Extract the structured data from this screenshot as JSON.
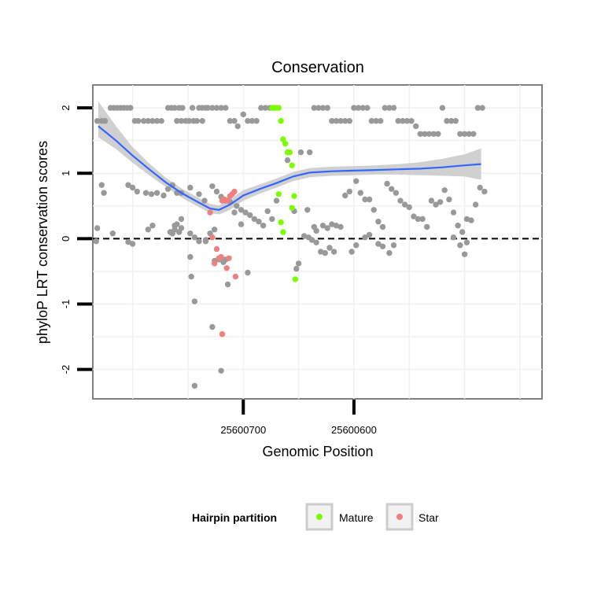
{
  "chart_data": {
    "type": "scatter",
    "title": "Conservation",
    "xlabel": "Genomic Position",
    "ylabel": "phyloP LRT conservation scores",
    "x_reversed": true,
    "xlim": [
      25600430,
      25600836
    ],
    "ylim": [
      -2.45,
      2.35
    ],
    "x_ticks": [
      25600700,
      25600600
    ],
    "x_tick_labels": [
      "25600700",
      "25600600"
    ],
    "y_ticks": [
      -2,
      -1,
      0,
      1,
      2
    ],
    "y_tick_labels": [
      "-2",
      "-1",
      "0",
      "1",
      "2"
    ],
    "reference_line": {
      "y": 0,
      "style": "dashed"
    },
    "grid": true,
    "legend": {
      "title": "Hairpin partition",
      "position": "bottom",
      "entries": [
        {
          "label": "Mature",
          "color": "#7cfc00"
        },
        {
          "label": "Star",
          "color": "#f08080"
        }
      ]
    },
    "colors": {
      "other": "#999999",
      "Mature": "#7cfc00",
      "Star": "#f08080",
      "smooth_line": "#3366ff",
      "smooth_band": "#c8c8c8"
    },
    "series": [
      {
        "name": "Mature",
        "points": [
          [
            25600674,
            2.0
          ],
          [
            25600672,
            2.0
          ],
          [
            25600670,
            2.0
          ],
          [
            25600668,
            2.0
          ],
          [
            25600666,
            1.8
          ],
          [
            25600664,
            1.52
          ],
          [
            25600662,
            1.45
          ],
          [
            25600660,
            1.32
          ],
          [
            25600658,
            1.32
          ],
          [
            25600656,
            1.12
          ],
          [
            25600668,
            0.68
          ],
          [
            25600666,
            0.25
          ],
          [
            25600664,
            0.1
          ],
          [
            25600656,
            0.47
          ],
          [
            25600654,
            0.65
          ],
          [
            25600653,
            -0.62
          ]
        ]
      },
      {
        "name": "Star",
        "points": [
          [
            25600730,
            0.4
          ],
          [
            25600728,
            0.02
          ],
          [
            25600726,
            -0.38
          ],
          [
            25600724,
            -0.16
          ],
          [
            25600722,
            -0.3
          ],
          [
            25600719,
            0.58
          ],
          [
            25600717,
            0.6
          ],
          [
            25600714,
            0.58
          ],
          [
            25600712,
            0.65
          ],
          [
            25600710,
            0.68
          ],
          [
            25600708,
            0.72
          ],
          [
            25600720,
            -0.28
          ],
          [
            25600715,
            -0.45
          ],
          [
            25600713,
            -0.3
          ],
          [
            25600707,
            -0.58
          ],
          [
            25600719,
            -1.46
          ]
        ]
      },
      {
        "name": "Other",
        "points": [
          [
            25600832,
            1.8
          ],
          [
            25600828,
            1.8
          ],
          [
            25600825,
            1.8
          ],
          [
            25600820,
            2.0
          ],
          [
            25600817,
            2.0
          ],
          [
            25600814,
            2.0
          ],
          [
            25600811,
            2.0
          ],
          [
            25600808,
            2.0
          ],
          [
            25600805,
            2.0
          ],
          [
            25600802,
            2.0
          ],
          [
            25600798,
            1.8
          ],
          [
            25600795,
            1.8
          ],
          [
            25600790,
            1.8
          ],
          [
            25600786,
            1.8
          ],
          [
            25600782,
            1.8
          ],
          [
            25600778,
            1.8
          ],
          [
            25600774,
            1.8
          ],
          [
            25600768,
            2.0
          ],
          [
            25600765,
            2.0
          ],
          [
            25600762,
            2.0
          ],
          [
            25600758,
            2.0
          ],
          [
            25600755,
            2.0
          ],
          [
            25600752,
            1.8
          ],
          [
            25600749,
            1.8
          ],
          [
            25600745,
            1.8
          ],
          [
            25600740,
            2.0
          ],
          [
            25600737,
            2.0
          ],
          [
            25600734,
            2.0
          ],
          [
            25600760,
            1.8
          ],
          [
            25600756,
            1.8
          ],
          [
            25600746,
            2.0
          ],
          [
            25600742,
            1.8
          ],
          [
            25600737,
            1.8
          ],
          [
            25600732,
            2.0
          ],
          [
            25600728,
            2.0
          ],
          [
            25600724,
            2.0
          ],
          [
            25600720,
            2.0
          ],
          [
            25600716,
            2.0
          ],
          [
            25600712,
            1.8
          ],
          [
            25600708,
            1.8
          ],
          [
            25600705,
            1.72
          ],
          [
            25600700,
            1.9
          ],
          [
            25600696,
            1.8
          ],
          [
            25600692,
            1.8
          ],
          [
            25600688,
            1.8
          ],
          [
            25600684,
            2.0
          ],
          [
            25600680,
            2.0
          ],
          [
            25600676,
            2.0
          ],
          [
            25600660,
            1.2
          ],
          [
            25600648,
            1.32
          ],
          [
            25600640,
            1.32
          ],
          [
            25600636,
            2.0
          ],
          [
            25600632,
            2.0
          ],
          [
            25600628,
            2.0
          ],
          [
            25600624,
            2.0
          ],
          [
            25600620,
            1.8
          ],
          [
            25600616,
            1.8
          ],
          [
            25600612,
            1.8
          ],
          [
            25600608,
            1.8
          ],
          [
            25600604,
            1.8
          ],
          [
            25600600,
            2.0
          ],
          [
            25600596,
            2.0
          ],
          [
            25600592,
            2.0
          ],
          [
            25600588,
            2.0
          ],
          [
            25600584,
            1.8
          ],
          [
            25600580,
            1.8
          ],
          [
            25600576,
            1.8
          ],
          [
            25600572,
            2.0
          ],
          [
            25600568,
            2.0
          ],
          [
            25600564,
            2.0
          ],
          [
            25600560,
            1.8
          ],
          [
            25600556,
            1.8
          ],
          [
            25600552,
            1.8
          ],
          [
            25600548,
            1.8
          ],
          [
            25600544,
            1.72
          ],
          [
            25600540,
            1.6
          ],
          [
            25600536,
            1.6
          ],
          [
            25600532,
            1.6
          ],
          [
            25600528,
            1.6
          ],
          [
            25600524,
            1.6
          ],
          [
            25600520,
            2.0
          ],
          [
            25600516,
            1.8
          ],
          [
            25600512,
            1.8
          ],
          [
            25600508,
            1.8
          ],
          [
            25600504,
            1.6
          ],
          [
            25600500,
            1.6
          ],
          [
            25600496,
            1.6
          ],
          [
            25600492,
            1.6
          ],
          [
            25600488,
            2.0
          ],
          [
            25600484,
            2.0
          ],
          [
            25600828,
            0.82
          ],
          [
            25600826,
            0.7
          ],
          [
            25600832,
            0.16
          ],
          [
            25600833,
            -0.04
          ],
          [
            25600818,
            0.08
          ],
          [
            25600804,
            0.82
          ],
          [
            25600800,
            0.78
          ],
          [
            25600796,
            0.72
          ],
          [
            25600788,
            0.7
          ],
          [
            25600783,
            0.68
          ],
          [
            25600778,
            0.7
          ],
          [
            25600772,
            0.66
          ],
          [
            25600768,
            0.76
          ],
          [
            25600764,
            0.82
          ],
          [
            25600760,
            0.7
          ],
          [
            25600756,
            0.7
          ],
          [
            25600748,
            0.78
          ],
          [
            25600740,
            0.68
          ],
          [
            25600735,
            0.58
          ],
          [
            25600728,
            0.8
          ],
          [
            25600724,
            0.72
          ],
          [
            25600720,
            0.64
          ],
          [
            25600716,
            0.58
          ],
          [
            25600712,
            0.56
          ],
          [
            25600706,
            0.5
          ],
          [
            25600702,
            0.44
          ],
          [
            25600698,
            0.4
          ],
          [
            25600694,
            0.36
          ],
          [
            25600690,
            0.3
          ],
          [
            25600686,
            0.26
          ],
          [
            25600682,
            0.2
          ],
          [
            25600678,
            0.42
          ],
          [
            25600674,
            0.3
          ],
          [
            25600670,
            0.58
          ],
          [
            25600654,
            0.42
          ],
          [
            25600642,
            0.44
          ],
          [
            25600636,
            0.18
          ],
          [
            25600634,
            0.12
          ],
          [
            25600628,
            0.2
          ],
          [
            25600624,
            0.16
          ],
          [
            25600620,
            0.22
          ],
          [
            25600616,
            0.2
          ],
          [
            25600612,
            0.18
          ],
          [
            25600608,
            0.66
          ],
          [
            25600604,
            0.72
          ],
          [
            25600598,
            0.88
          ],
          [
            25600594,
            0.7
          ],
          [
            25600590,
            0.6
          ],
          [
            25600586,
            0.6
          ],
          [
            25600582,
            0.44
          ],
          [
            25600578,
            0.26
          ],
          [
            25600574,
            0.18
          ],
          [
            25600570,
            0.84
          ],
          [
            25600566,
            0.76
          ],
          [
            25600562,
            0.7
          ],
          [
            25600558,
            0.58
          ],
          [
            25600554,
            0.52
          ],
          [
            25600550,
            0.48
          ],
          [
            25600546,
            0.34
          ],
          [
            25600542,
            0.3
          ],
          [
            25600538,
            0.3
          ],
          [
            25600534,
            0.18
          ],
          [
            25600530,
            0.58
          ],
          [
            25600526,
            0.52
          ],
          [
            25600522,
            0.56
          ],
          [
            25600518,
            0.74
          ],
          [
            25600514,
            0.6
          ],
          [
            25600510,
            0.4
          ],
          [
            25600506,
            0.2
          ],
          [
            25600502,
            0.1
          ],
          [
            25600498,
            0.3
          ],
          [
            25600494,
            0.28
          ],
          [
            25600490,
            0.52
          ],
          [
            25600486,
            0.78
          ],
          [
            25600482,
            0.72
          ],
          [
            25600804,
            -0.05
          ],
          [
            25600800,
            -0.08
          ],
          [
            25600786,
            0.14
          ],
          [
            25600782,
            0.2
          ],
          [
            25600766,
            0.1
          ],
          [
            25600762,
            0.2
          ],
          [
            25600756,
            0.16
          ],
          [
            25600748,
            0.08
          ],
          [
            25600744,
            0.02
          ],
          [
            25600740,
            -0.04
          ],
          [
            25600734,
            -0.02
          ],
          [
            25600708,
            0.4
          ],
          [
            25600702,
            0.22
          ],
          [
            25600696,
            -0.52
          ],
          [
            25600645,
            0.04
          ],
          [
            25600641,
            0.02
          ],
          [
            25600638,
            -0.02
          ],
          [
            25600634,
            -0.06
          ],
          [
            25600630,
            -0.2
          ],
          [
            25600626,
            -0.22
          ],
          [
            25600622,
            -0.14
          ],
          [
            25600618,
            -0.2
          ],
          [
            25600602,
            -0.2
          ],
          [
            25600598,
            -0.1
          ],
          [
            25600590,
            0.02
          ],
          [
            25600586,
            0.06
          ],
          [
            25600578,
            -0.08
          ],
          [
            25600574,
            -0.12
          ],
          [
            25600568,
            -0.22
          ],
          [
            25600564,
            -0.1
          ],
          [
            25600510,
            0.02
          ],
          [
            25600504,
            -0.1
          ],
          [
            25600500,
            -0.24
          ],
          [
            25600498,
            -0.06
          ],
          [
            25600764,
            0.08
          ],
          [
            25600762,
            0.14
          ],
          [
            25600760,
            0.22
          ],
          [
            25600758,
            0.1
          ],
          [
            25600756,
            0.3
          ],
          [
            25600748,
            -0.28
          ],
          [
            25600747,
            -0.58
          ],
          [
            25600744,
            -0.96
          ],
          [
            25600734,
            -0.04
          ],
          [
            25600730,
            0.08
          ],
          [
            25600726,
            -0.34
          ],
          [
            25600722,
            -0.32
          ],
          [
            25600718,
            -0.36
          ],
          [
            25600716,
            -0.32
          ],
          [
            25600714,
            -0.7
          ],
          [
            25600728,
            -1.35
          ],
          [
            25600720,
            -2.02
          ],
          [
            25600744,
            -2.25
          ],
          [
            25600726,
            0.14
          ],
          [
            25600652,
            -0.46
          ],
          [
            25600650,
            -0.38
          ]
        ]
      }
    ],
    "smooth": {
      "x": [
        25600831,
        25600815,
        25600800,
        25600785,
        25600770,
        25600755,
        25600740,
        25600730,
        25600722,
        25600712,
        25600700,
        25600685,
        25600670,
        25600655,
        25600640,
        25600620,
        25600600,
        25600580,
        25600560,
        25600540,
        25600520,
        25600500,
        25600485
      ],
      "y": [
        1.72,
        1.5,
        1.27,
        1.06,
        0.86,
        0.69,
        0.55,
        0.46,
        0.44,
        0.52,
        0.66,
        0.76,
        0.85,
        0.95,
        1.01,
        1.03,
        1.04,
        1.05,
        1.06,
        1.07,
        1.09,
        1.12,
        1.14
      ],
      "lower": [
        1.55,
        1.37,
        1.16,
        0.97,
        0.79,
        0.62,
        0.48,
        0.39,
        0.37,
        0.44,
        0.58,
        0.69,
        0.78,
        0.88,
        0.94,
        0.96,
        0.97,
        0.98,
        0.98,
        0.97,
        0.96,
        0.95,
        0.9
      ],
      "upper": [
        2.1,
        1.72,
        1.4,
        1.15,
        0.93,
        0.76,
        0.62,
        0.53,
        0.51,
        0.6,
        0.74,
        0.83,
        0.92,
        1.02,
        1.08,
        1.1,
        1.11,
        1.12,
        1.14,
        1.17,
        1.22,
        1.29,
        1.38
      ]
    }
  }
}
